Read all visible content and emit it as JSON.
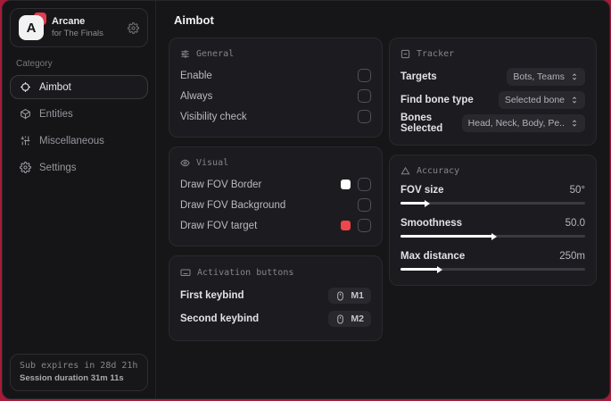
{
  "colors": {
    "background_red": "#a61b38",
    "swatch_white": "#ffffff",
    "swatch_red": "#ef4649",
    "logo_accent_red": "#e33c50"
  },
  "sidebar": {
    "brand": {
      "title": "Arcane",
      "subtitle": "for The Finals",
      "logo_letter": "A",
      "gear_icon": "gear-icon"
    },
    "category_label": "Category",
    "items": [
      {
        "label": "Aimbot",
        "icon": "crosshair-icon",
        "selected": true
      },
      {
        "label": "Entities",
        "icon": "cube-icon",
        "selected": false
      },
      {
        "label": "Miscellaneous",
        "icon": "sliders-vertical-icon",
        "selected": false
      },
      {
        "label": "Settings",
        "icon": "gear-icon",
        "selected": false
      }
    ],
    "footer": {
      "line1": "Sub expires in 28d 21h",
      "line2": "Session duration 31m 11s"
    }
  },
  "header": {
    "title": "Aimbot"
  },
  "panels": {
    "general": {
      "title": "General",
      "icon": "sliders-horizontal-icon",
      "rows": [
        {
          "label": "Enable",
          "checked": false
        },
        {
          "label": "Always",
          "checked": false
        },
        {
          "label": "Visibility check",
          "checked": false
        }
      ]
    },
    "visual": {
      "title": "Visual",
      "icon": "eye-icon",
      "rows": [
        {
          "label": "Draw FOV Border",
          "swatch": "#ffffff",
          "checked": false
        },
        {
          "label": "Draw FOV Background",
          "swatch": null,
          "checked": false
        },
        {
          "label": "Draw FOV target",
          "swatch": "#ef4649",
          "checked": false
        }
      ]
    },
    "activation": {
      "title": "Activation buttons",
      "icon": "keyboard-icon",
      "rows": [
        {
          "label": "First keybind",
          "key": "M1",
          "key_icon": "mouse-icon"
        },
        {
          "label": "Second keybind",
          "key": "M2",
          "key_icon": "mouse-icon"
        }
      ]
    },
    "tracker": {
      "title": "Tracker",
      "icon": "frame-minus-icon",
      "rows": [
        {
          "label": "Targets",
          "value": "Bots, Teams",
          "icon": "unfold-icon"
        },
        {
          "label": "Find bone type",
          "value": "Selected bone",
          "icon": "unfold-icon"
        },
        {
          "label": "Bones Selected",
          "value": "Head, Neck, Body, Pe..",
          "icon": "unfold-icon"
        }
      ]
    },
    "accuracy": {
      "title": "Accuracy",
      "icon": "triangle-icon",
      "rows": [
        {
          "label": "FOV size",
          "value": "50°",
          "fill_percent": 14
        },
        {
          "label": "Smoothness",
          "value": "50.0",
          "fill_percent": 50
        },
        {
          "label": "Max distance",
          "value": "250m",
          "fill_percent": 21
        }
      ]
    }
  }
}
